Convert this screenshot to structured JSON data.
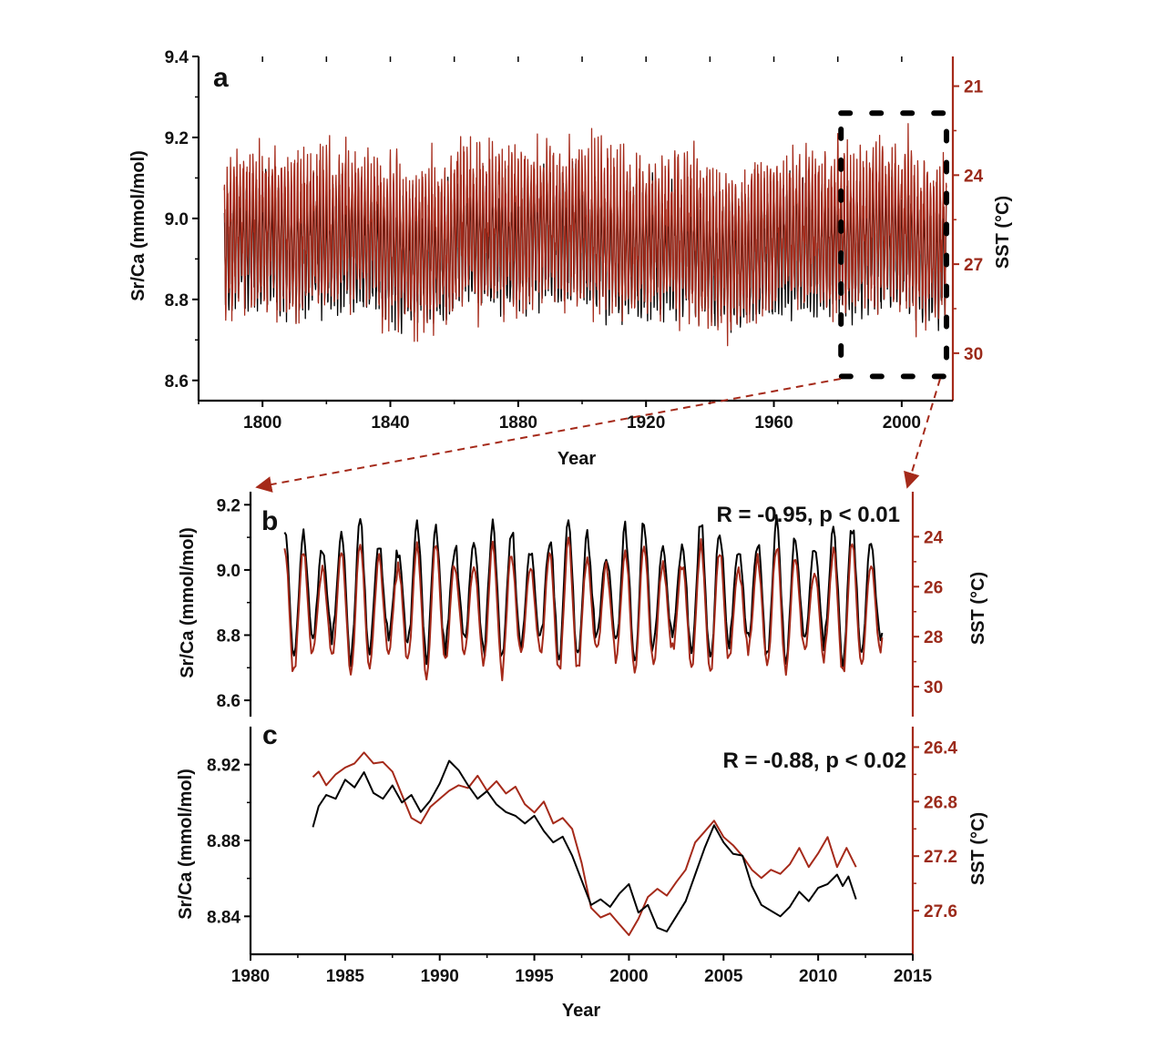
{
  "colors": {
    "srca": "#000000",
    "sst": "#a52a1a",
    "frame": "#000000"
  },
  "chart_data": [
    {
      "id": "a",
      "type": "line",
      "label": "a",
      "xlabel": "Year",
      "ylabel": "Sr/Ca (mmol/mol)",
      "y2label": "SST (°C)",
      "xlim": [
        1780,
        2016
      ],
      "ylim": [
        8.55,
        9.4
      ],
      "y2lim": [
        20,
        31.6
      ],
      "y2_inverted": true,
      "xticks": [
        1800,
        1840,
        1880,
        1920,
        1960,
        2000
      ],
      "yticks": [
        8.6,
        8.8,
        9.0,
        9.2,
        9.4
      ],
      "y2ticks": [
        21,
        24,
        27,
        30
      ],
      "highlight_box": {
        "x": [
          1981,
          2014
        ],
        "y": [
          8.61,
          9.26
        ]
      },
      "series": [
        {
          "role": "srca",
          "axis": "left",
          "x_start": 1788.0,
          "x_end": 2014.0,
          "samples_per_year": 12,
          "mean": 8.92,
          "amplitude": 0.14
        },
        {
          "role": "sst",
          "axis": "right",
          "x_start": 1788.0,
          "x_end": 2014.0,
          "samples_per_year": 12,
          "mean": 26.0,
          "amplitude": 2.3
        }
      ]
    },
    {
      "id": "b",
      "type": "line",
      "label": "b",
      "annotation": "R = -0.95, p < 0.01",
      "xlim": [
        1980,
        2015
      ],
      "ylim": [
        8.55,
        9.24
      ],
      "y2lim": [
        22.2,
        31.2
      ],
      "y2_inverted": true,
      "yticks": [
        8.6,
        8.8,
        9.0,
        9.2
      ],
      "y2ticks": [
        24,
        26,
        28,
        30
      ],
      "ylabel": "Sr/Ca (mmol/mol)",
      "y2label": "SST (°C)",
      "series": [
        {
          "role": "srca",
          "axis": "left",
          "x_start": 1981.8,
          "x_end": 2013.4,
          "samples_per_year": 12,
          "mean": 8.93,
          "amplitude": 0.19
        },
        {
          "role": "sst",
          "axis": "right",
          "x_start": 1981.8,
          "x_end": 2013.4,
          "samples_per_year": 12,
          "mean": 26.9,
          "amplitude": 2.35
        }
      ]
    },
    {
      "id": "c",
      "type": "line",
      "label": "c",
      "annotation": "R = -0.88, p < 0.02",
      "xlabel": "Year",
      "ylabel": "Sr/Ca (mmol/mol)",
      "y2label": "SST (°C)",
      "xlim": [
        1980,
        2015
      ],
      "ylim": [
        8.82,
        8.94
      ],
      "y2lim": [
        26.25,
        27.92
      ],
      "y2_inverted": true,
      "xticks": [
        1980,
        1985,
        1990,
        1995,
        2000,
        2005,
        2010,
        2015
      ],
      "yticks": [
        8.84,
        8.88,
        8.92
      ],
      "y2ticks": [
        26.4,
        26.8,
        27.2,
        27.6
      ],
      "series": [
        {
          "role": "srca",
          "axis": "left",
          "x": [
            1983.3,
            1983.6,
            1984.0,
            1984.5,
            1985.0,
            1985.5,
            1986.0,
            1986.5,
            1987.0,
            1987.5,
            1988.0,
            1988.5,
            1989.0,
            1989.5,
            1990.0,
            1990.5,
            1991.0,
            1991.5,
            1992.0,
            1992.5,
            1993.0,
            1993.5,
            1994.0,
            1994.5,
            1995.0,
            1995.5,
            1996.0,
            1996.5,
            1997.0,
            1997.5,
            1998.0,
            1998.5,
            1999.0,
            1999.5,
            2000.0,
            2000.5,
            2001.0,
            2001.5,
            2002.0,
            2002.5,
            2003.0,
            2003.5,
            2004.0,
            2004.5,
            2005.0,
            2005.5,
            2006.0,
            2006.5,
            2007.0,
            2007.5,
            2008.0,
            2008.5,
            2009.0,
            2009.5,
            2010.0,
            2010.5,
            2011.0,
            2011.3,
            2011.6,
            2012.0
          ],
          "y": [
            8.887,
            8.898,
            8.904,
            8.902,
            8.912,
            8.908,
            8.916,
            8.905,
            8.902,
            8.909,
            8.9,
            8.904,
            8.895,
            8.901,
            8.91,
            8.922,
            8.917,
            8.909,
            8.902,
            8.906,
            8.899,
            8.895,
            8.893,
            8.889,
            8.893,
            8.885,
            8.879,
            8.882,
            8.872,
            8.859,
            8.846,
            8.849,
            8.845,
            8.852,
            8.857,
            8.842,
            8.846,
            8.834,
            8.832,
            8.84,
            8.848,
            8.862,
            8.876,
            8.888,
            8.879,
            8.873,
            8.872,
            8.856,
            8.846,
            8.843,
            8.84,
            8.845,
            8.853,
            8.848,
            8.855,
            8.857,
            8.862,
            8.856,
            8.861,
            8.849
          ]
        },
        {
          "role": "sst",
          "axis": "right",
          "x": [
            1983.3,
            1983.6,
            1984.0,
            1984.5,
            1985.0,
            1985.5,
            1986.0,
            1986.5,
            1987.0,
            1987.5,
            1988.0,
            1988.5,
            1989.0,
            1989.5,
            1990.0,
            1990.5,
            1991.0,
            1991.5,
            1992.0,
            1992.5,
            1993.0,
            1993.5,
            1994.0,
            1994.5,
            1995.0,
            1995.5,
            1996.0,
            1996.5,
            1997.0,
            1997.5,
            1998.0,
            1998.5,
            1999.0,
            1999.5,
            2000.0,
            2000.5,
            2001.0,
            2001.5,
            2002.0,
            2002.5,
            2003.0,
            2003.5,
            2004.0,
            2004.5,
            2005.0,
            2005.5,
            2006.0,
            2006.5,
            2007.0,
            2007.5,
            2008.0,
            2008.5,
            2009.0,
            2009.5,
            2010.0,
            2010.5,
            2011.0,
            2011.5,
            2012.0
          ],
          "y": [
            26.62,
            26.58,
            26.68,
            26.6,
            26.55,
            26.52,
            26.44,
            26.52,
            26.51,
            26.58,
            26.75,
            26.92,
            26.96,
            26.84,
            26.78,
            26.72,
            26.68,
            26.7,
            26.61,
            26.72,
            26.65,
            26.74,
            26.69,
            26.82,
            26.88,
            26.8,
            26.96,
            26.92,
            27.0,
            27.25,
            27.58,
            27.65,
            27.62,
            27.7,
            27.78,
            27.66,
            27.5,
            27.44,
            27.49,
            27.39,
            27.3,
            27.1,
            27.02,
            26.94,
            27.06,
            27.12,
            27.2,
            27.3,
            27.36,
            27.3,
            27.33,
            27.26,
            27.14,
            27.28,
            27.18,
            27.06,
            27.28,
            27.14,
            27.28
          ]
        }
      ]
    }
  ]
}
